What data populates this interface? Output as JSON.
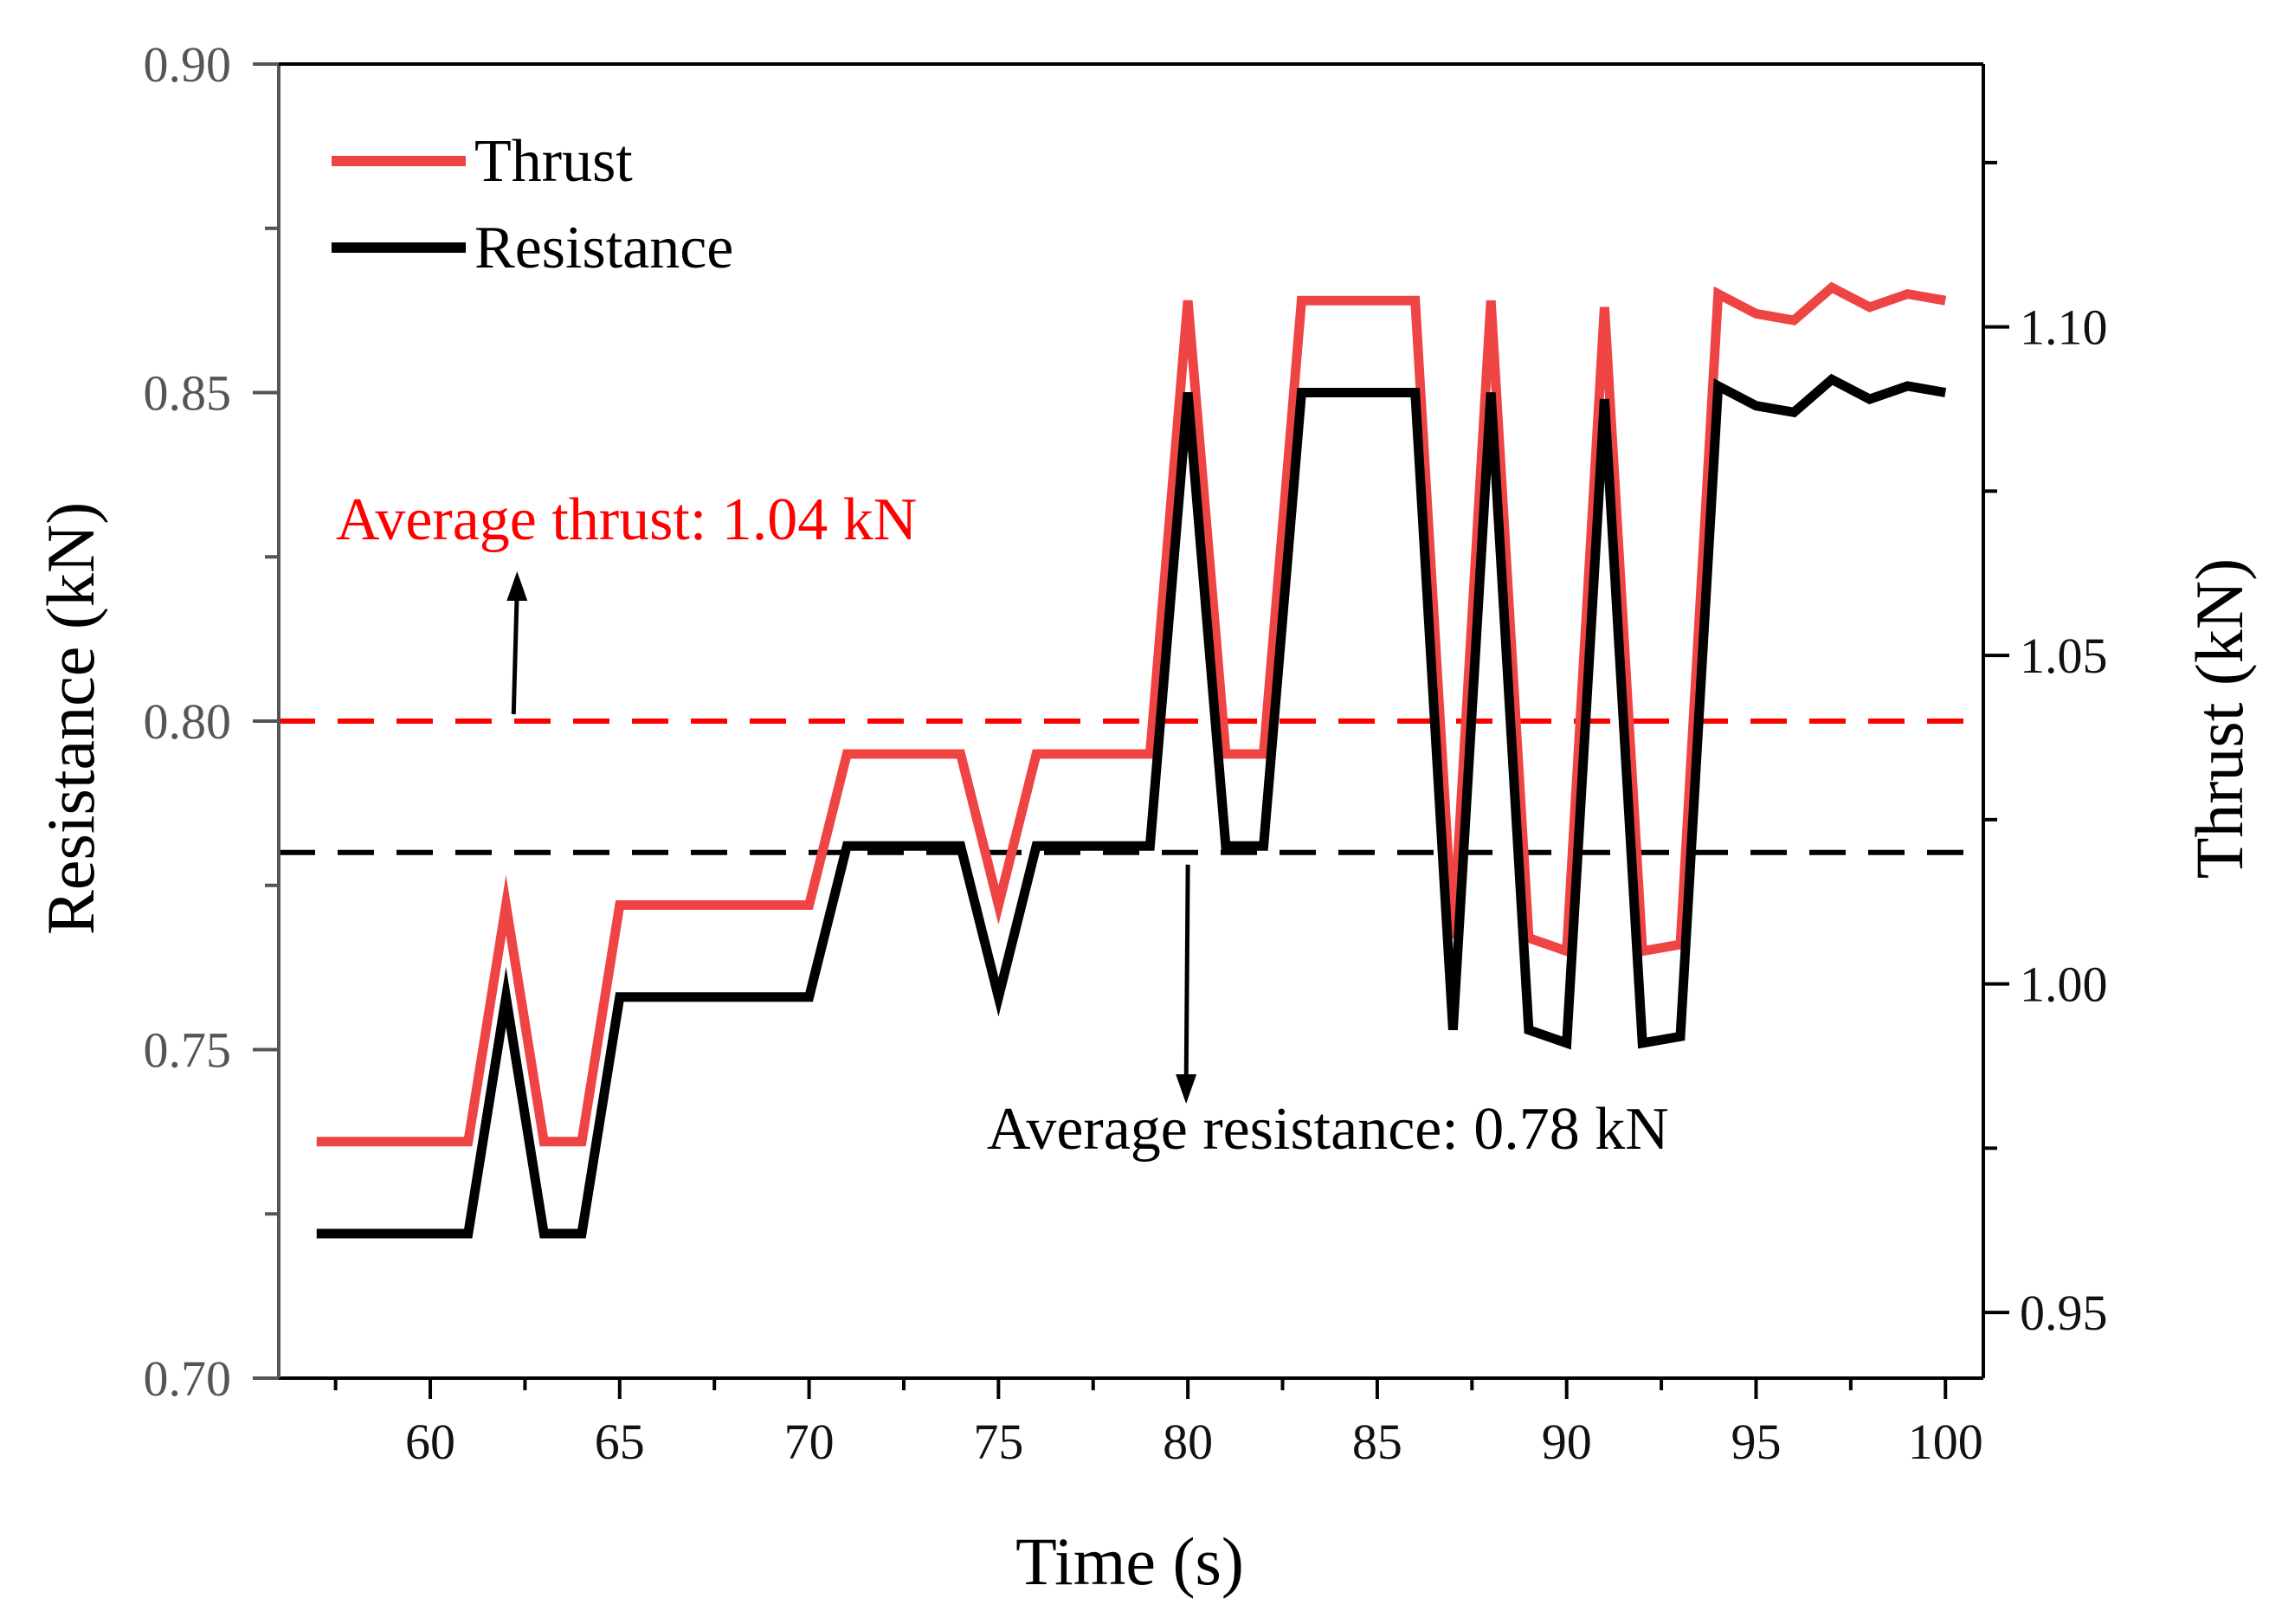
{
  "chart_data": {
    "type": "line",
    "x_label": "Time (s)",
    "y_label_left": "Resistance (kN)",
    "y_label_right": "Thrust (kN)",
    "x_range": [
      56.0,
      101.0
    ],
    "y_left_range": [
      0.7,
      0.9
    ],
    "y_right_range": [
      0.94,
      1.14
    ],
    "x_ticks": [
      60,
      65,
      70,
      75,
      80,
      85,
      90,
      95,
      100
    ],
    "x_ticks_minor": [
      57.5,
      62.5,
      67.5,
      72.5,
      77.5,
      82.5,
      87.5,
      92.5,
      97.5
    ],
    "y_left_ticks": [
      "0.70",
      "0.75",
      "0.80",
      "0.85",
      "0.90"
    ],
    "y_left_ticks_minor": [
      0.725,
      0.775,
      0.825,
      0.875
    ],
    "y_right_ticks": [
      "0.95",
      "1.00",
      "1.05",
      "1.10"
    ],
    "y_right_ticks_minor": [
      0.975,
      1.025,
      1.075,
      1.125
    ],
    "x": [
      57,
      61,
      62,
      63,
      64,
      65,
      70,
      71,
      74,
      75,
      76,
      79,
      80,
      81,
      82,
      83,
      86,
      87,
      88,
      89,
      90,
      91,
      92,
      93,
      94,
      95,
      96,
      97,
      98,
      99,
      100
    ],
    "series": [
      {
        "name": "Thrust",
        "axis": "right",
        "color": "#ee4444",
        "values": [
          0.976,
          0.976,
          1.012,
          0.976,
          0.976,
          1.012,
          1.012,
          1.035,
          1.035,
          1.012,
          1.035,
          1.035,
          1.104,
          1.035,
          1.035,
          1.104,
          1.104,
          1.007,
          1.104,
          1.007,
          1.005,
          1.103,
          1.005,
          1.006,
          1.105,
          1.102,
          1.101,
          1.106,
          1.103,
          1.105,
          1.104
        ]
      },
      {
        "name": "Resistance",
        "axis": "left",
        "color": "#000000",
        "values": [
          0.722,
          0.722,
          0.758,
          0.722,
          0.722,
          0.758,
          0.758,
          0.781,
          0.781,
          0.758,
          0.781,
          0.781,
          0.85,
          0.781,
          0.781,
          0.85,
          0.85,
          0.753,
          0.85,
          0.753,
          0.751,
          0.849,
          0.751,
          0.752,
          0.851,
          0.848,
          0.847,
          0.852,
          0.849,
          0.851,
          0.85
        ]
      }
    ],
    "reference_lines": [
      {
        "name": "average-thrust",
        "axis": "left",
        "value": 0.8,
        "color": "#ff0000"
      },
      {
        "name": "average-resistance",
        "axis": "left",
        "value": 0.78,
        "color": "#000000"
      }
    ],
    "annotations": {
      "average_thrust": "Average thrust: 1.04 kN",
      "average_resistance": "Average resistance: 0.78 kN"
    },
    "legend": {
      "position": "top-left",
      "entries": [
        "Thrust",
        "Resistance"
      ]
    }
  }
}
